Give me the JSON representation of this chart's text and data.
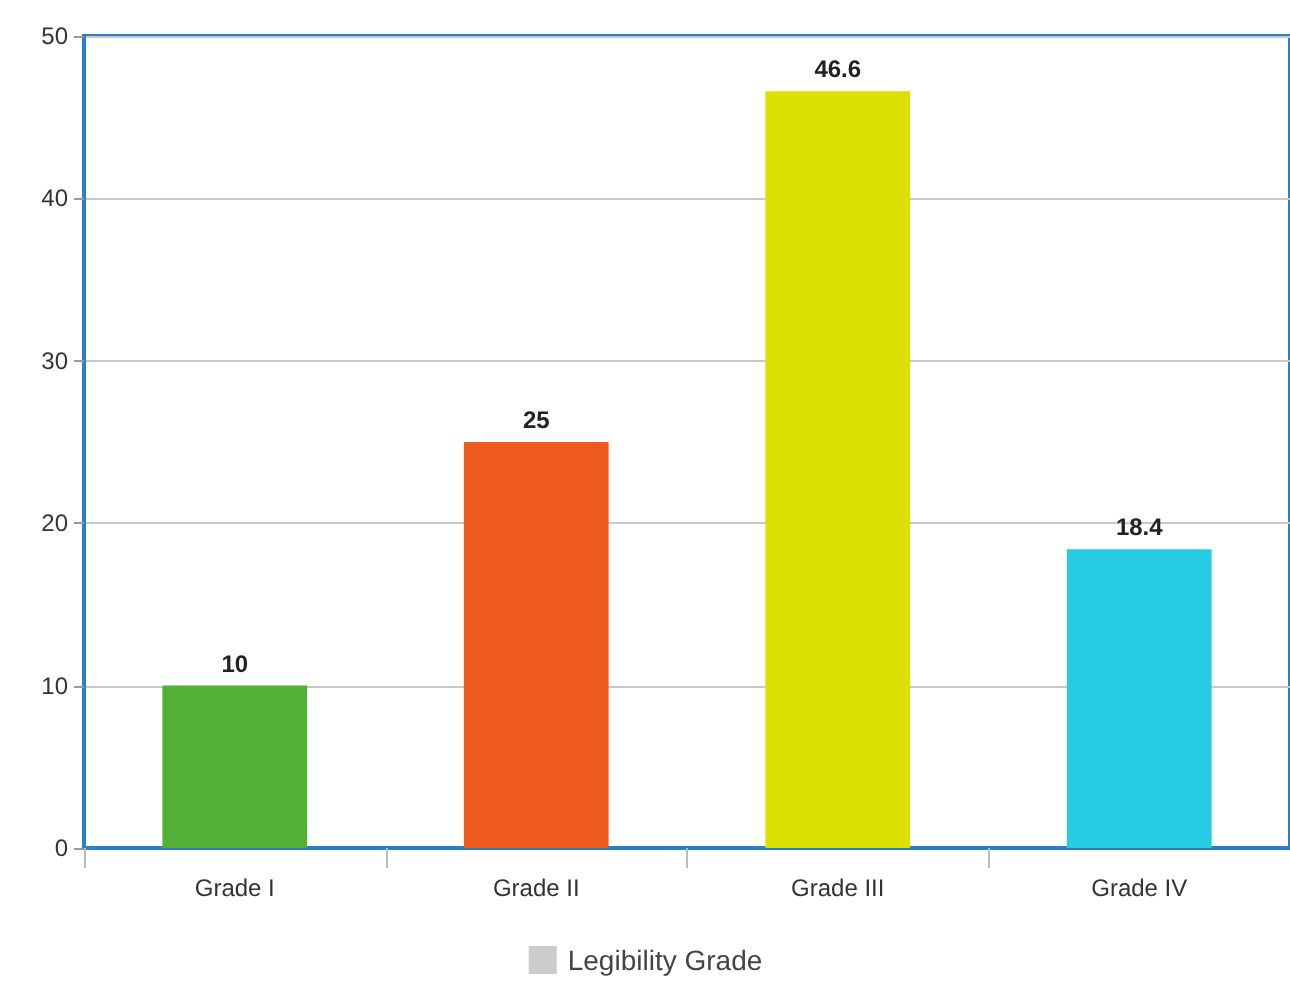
{
  "chart_data": {
    "type": "bar",
    "categories": [
      "Grade I",
      "Grade II",
      "Grade III",
      "Grade IV"
    ],
    "series": [
      {
        "name": "Legibility Grade",
        "color": "#cccccc",
        "colors": [
          "#52b135",
          "#ee5a1e",
          "#dce000",
          "#27cce4"
        ],
        "values": [
          10,
          25,
          46.6,
          18.4
        ]
      }
    ],
    "ylim": [
      0,
      50
    ],
    "yticks": [
      0,
      10,
      20,
      30,
      40,
      50
    ],
    "grid": "y",
    "legend": "bottom",
    "data_labels": true
  }
}
